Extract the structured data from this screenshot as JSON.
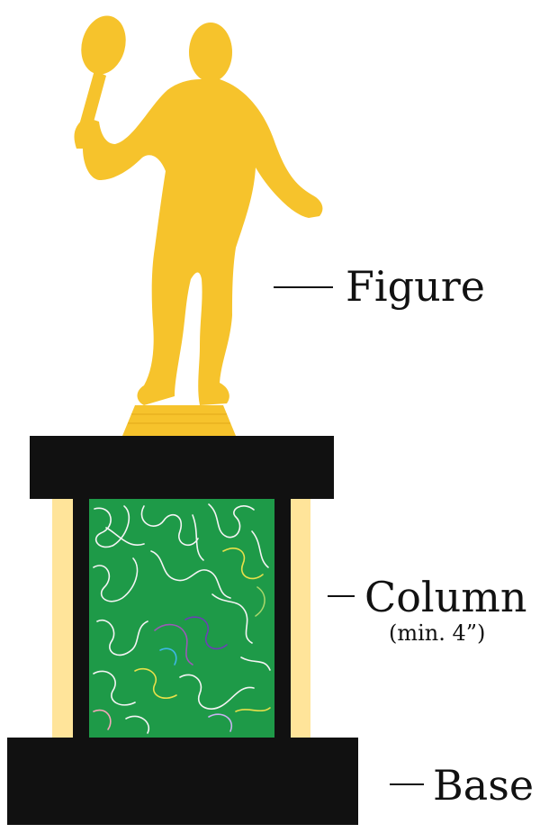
{
  "labels": {
    "figure": "Figure",
    "column": "Column",
    "column_note": "(min. 4”)",
    "base": "Base"
  },
  "colors": {
    "figure_gold": "#F6C32C",
    "black": "#111111",
    "column_side": "#FFE49A",
    "column_panel": "#1E9A48"
  }
}
